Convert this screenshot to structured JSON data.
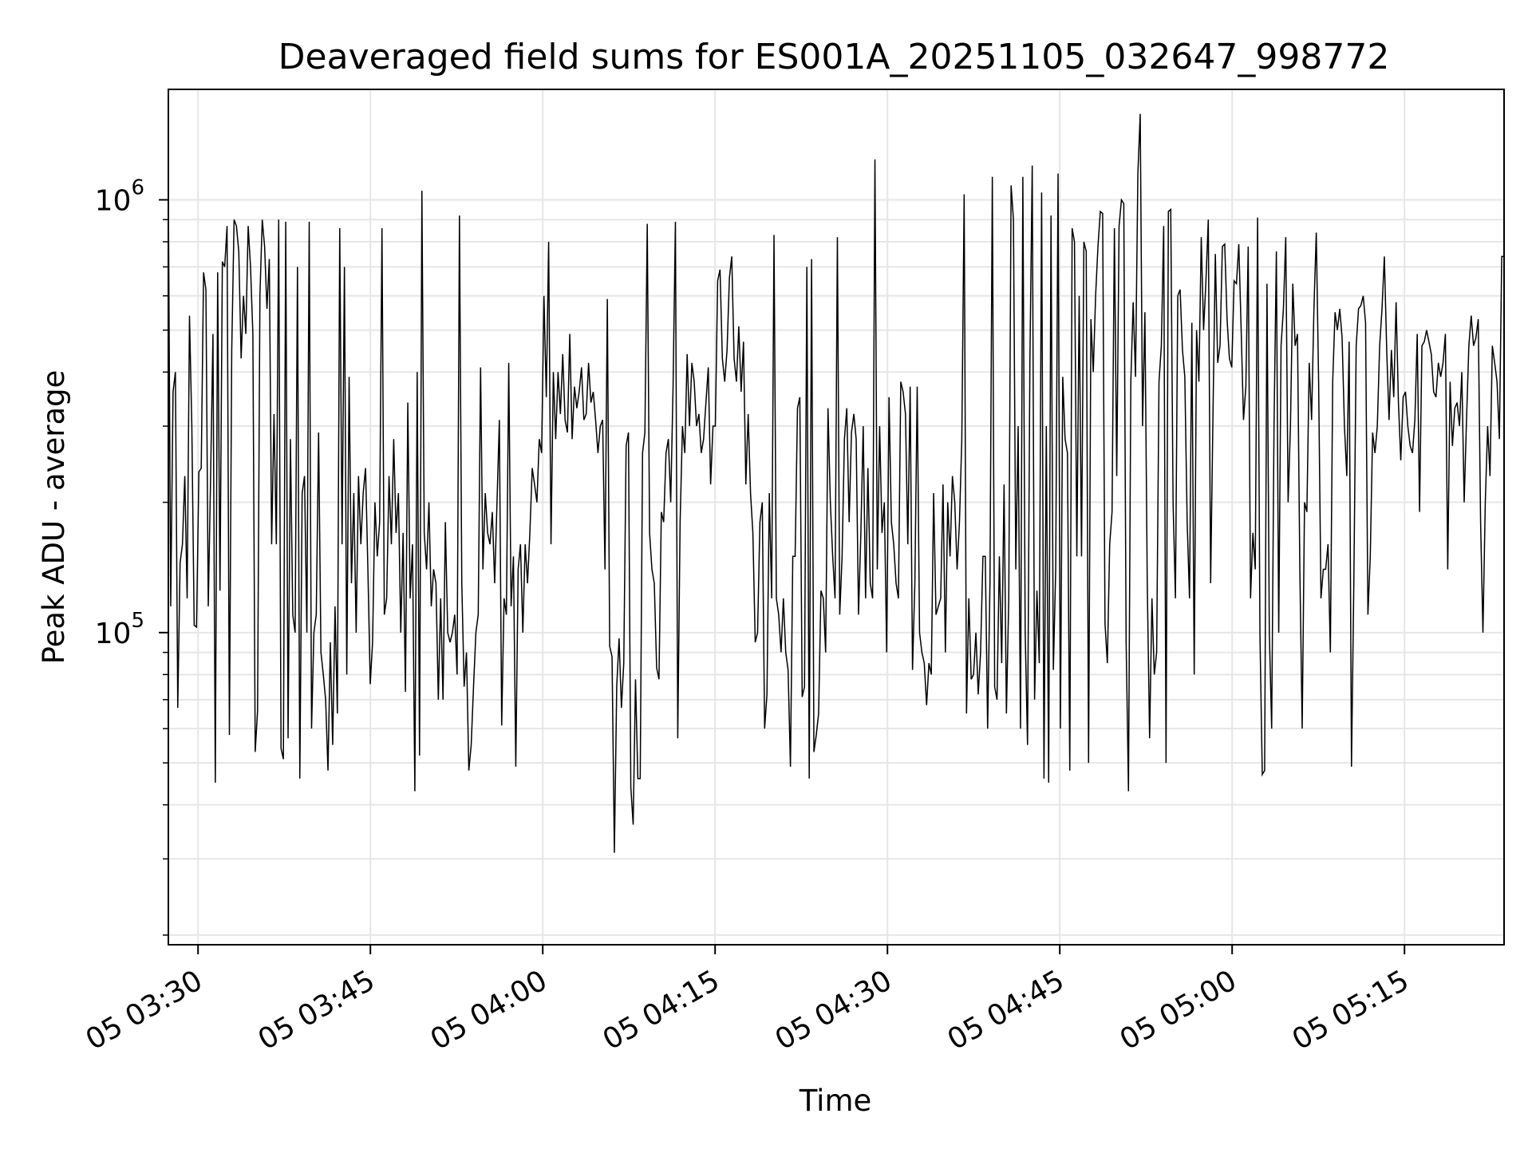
{
  "chart_data": {
    "type": "line",
    "title": "Deaveraged field sums for ES001A_20251105_032647_998772",
    "xlabel": "Time",
    "ylabel": "Peak ADU - average",
    "x_tick_labels": [
      "05 03:30",
      "05 03:45",
      "05 04:00",
      "05 04:15",
      "05 04:30",
      "05 04:45",
      "05 05:00",
      "05 05:15"
    ],
    "y_tick_labels": [
      {
        "base": "10",
        "exponent": "5"
      },
      {
        "base": "10",
        "exponent": "6"
      }
    ],
    "xlim": [
      "2025-11-05 03:27:25",
      "2025-11-05 05:23:40"
    ],
    "ylim": [
      19000,
      1800000
    ],
    "yscale": "log",
    "grid": true,
    "line_color": "#000000",
    "series": [
      {
        "values": [
          1050000,
          115000,
          360000,
          400000,
          67000,
          145000,
          160000,
          230000,
          120000,
          540000,
          300000,
          104000,
          103000,
          235000,
          240000,
          680000,
          620000,
          115000,
          230000,
          490000,
          45000,
          680000,
          125000,
          720000,
          700000,
          870000,
          58000,
          450000,
          900000,
          870000,
          760000,
          430000,
          600000,
          490000,
          870000,
          700000,
          490000,
          53000,
          66000,
          600000,
          900000,
          780000,
          560000,
          730000,
          160000,
          320000,
          160000,
          900000,
          54000,
          51000,
          890000,
          57000,
          280000,
          110000,
          100000,
          700000,
          46000,
          210000,
          230000,
          100000,
          890000,
          60000,
          100000,
          110000,
          290000,
          90000,
          80000,
          70000,
          48000,
          95000,
          55000,
          115000,
          65000,
          860000,
          160000,
          700000,
          80000,
          390000,
          130000,
          210000,
          100000,
          230000,
          160000,
          210000,
          240000,
          140000,
          76000,
          95000,
          200000,
          150000,
          180000,
          860000,
          110000,
          120000,
          230000,
          160000,
          280000,
          170000,
          210000,
          100000,
          170000,
          73000,
          340000,
          120000,
          160000,
          43000,
          400000,
          52000,
          1050000,
          170000,
          140000,
          200000,
          115000,
          140000,
          130000,
          70000,
          120000,
          70000,
          180000,
          100000,
          95000,
          100000,
          110000,
          80000,
          920000,
          130000,
          75000,
          90000,
          48000,
          55000,
          75000,
          100000,
          110000,
          410000,
          140000,
          210000,
          170000,
          160000,
          190000,
          130000,
          200000,
          310000,
          61000,
          120000,
          110000,
          420000,
          115000,
          150000,
          49000,
          140000,
          160000,
          100000,
          160000,
          130000,
          170000,
          240000,
          220000,
          200000,
          280000,
          260000,
          600000,
          350000,
          800000,
          160000,
          400000,
          280000,
          400000,
          320000,
          440000,
          310000,
          290000,
          490000,
          280000,
          370000,
          330000,
          360000,
          410000,
          310000,
          320000,
          420000,
          340000,
          360000,
          310000,
          260000,
          300000,
          310000,
          140000,
          590000,
          93000,
          88000,
          31000,
          75000,
          97000,
          67000,
          85000,
          270000,
          290000,
          44000,
          36000,
          78000,
          46000,
          46000,
          260000,
          290000,
          880000,
          170000,
          140000,
          130000,
          83000,
          78000,
          190000,
          180000,
          260000,
          280000,
          200000,
          370000,
          890000,
          57000,
          180000,
          300000,
          260000,
          440000,
          300000,
          420000,
          380000,
          300000,
          320000,
          260000,
          280000,
          340000,
          410000,
          220000,
          300000,
          300000,
          650000,
          690000,
          430000,
          380000,
          450000,
          660000,
          740000,
          430000,
          380000,
          510000,
          360000,
          470000,
          220000,
          320000,
          210000,
          170000,
          95000,
          100000,
          180000,
          200000,
          60000,
          72000,
          210000,
          120000,
          830000,
          120000,
          110000,
          90000,
          120000,
          90000,
          82000,
          49000,
          150000,
          150000,
          330000,
          350000,
          71000,
          75000,
          700000,
          46000,
          730000,
          53000,
          58000,
          65000,
          125000,
          120000,
          90000,
          330000,
          200000,
          150000,
          120000,
          820000,
          110000,
          150000,
          280000,
          330000,
          180000,
          290000,
          320000,
          280000,
          110000,
          170000,
          300000,
          120000,
          240000,
          130000,
          120000,
          1240000,
          140000,
          300000,
          170000,
          200000,
          90000,
          350000,
          180000,
          160000,
          130000,
          120000,
          380000,
          360000,
          320000,
          160000,
          370000,
          82000,
          130000,
          370000,
          100000,
          90000,
          85000,
          68000,
          85000,
          80000,
          210000,
          110000,
          115000,
          120000,
          220000,
          90000,
          200000,
          150000,
          230000,
          200000,
          140000,
          180000,
          280000,
          1030000,
          65000,
          120000,
          78000,
          80000,
          100000,
          72000,
          90000,
          150000,
          150000,
          60000,
          130000,
          1130000,
          75000,
          70000,
          150000,
          85000,
          220000,
          65000,
          120000,
          1080000,
          900000,
          140000,
          300000,
          60000,
          1130000,
          100000,
          55000,
          420000,
          1200000,
          70000,
          125000,
          85000,
          1040000,
          46000,
          300000,
          45000,
          920000,
          82000,
          140000,
          1150000,
          60000,
          390000,
          280000,
          260000,
          48000,
          860000,
          800000,
          150000,
          600000,
          150000,
          800000,
          760000,
          50000,
          530000,
          400000,
          600000,
          780000,
          940000,
          930000,
          105000,
          85000,
          160000,
          190000,
          860000,
          230000,
          870000,
          1000000,
          980000,
          95000,
          43000,
          380000,
          580000,
          390000,
          1150000,
          1580000,
          300000,
          550000,
          130000,
          57000,
          120000,
          80000,
          90000,
          380000,
          460000,
          870000,
          50000,
          940000,
          950000,
          200000,
          120000,
          600000,
          620000,
          450000,
          390000,
          180000,
          120000,
          520000,
          80000,
          500000,
          380000,
          820000,
          500000,
          650000,
          900000,
          130000,
          320000,
          750000,
          420000,
          460000,
          780000,
          790000,
          530000,
          430000,
          410000,
          650000,
          640000,
          790000,
          500000,
          310000,
          370000,
          780000,
          120000,
          170000,
          140000,
          910000,
          100000,
          47000,
          48000,
          640000,
          100000,
          60000,
          300000,
          760000,
          100000,
          460000,
          560000,
          820000,
          200000,
          300000,
          640000,
          460000,
          490000,
          140000,
          60000,
          200000,
          190000,
          420000,
          310000,
          560000,
          840000,
          380000,
          120000,
          140000,
          140000,
          160000,
          90000,
          380000,
          550000,
          500000,
          560000,
          480000,
          300000,
          230000,
          470000,
          49000,
          130000,
          460000,
          560000,
          570000,
          600000,
          520000,
          110000,
          150000,
          290000,
          260000,
          300000,
          460000,
          560000,
          740000,
          450000,
          310000,
          450000,
          350000,
          580000,
          340000,
          250000,
          350000,
          360000,
          300000,
          270000,
          260000,
          310000,
          490000,
          190000,
          460000,
          470000,
          500000,
          470000,
          440000,
          360000,
          350000,
          420000,
          390000,
          420000,
          490000,
          140000,
          380000,
          270000,
          330000,
          340000,
          300000,
          400000,
          200000,
          310000,
          460000,
          540000,
          460000,
          480000,
          530000,
          180000,
          100000,
          200000,
          300000,
          230000,
          460000,
          420000,
          380000,
          280000,
          740000,
          740000
        ]
      }
    ]
  }
}
